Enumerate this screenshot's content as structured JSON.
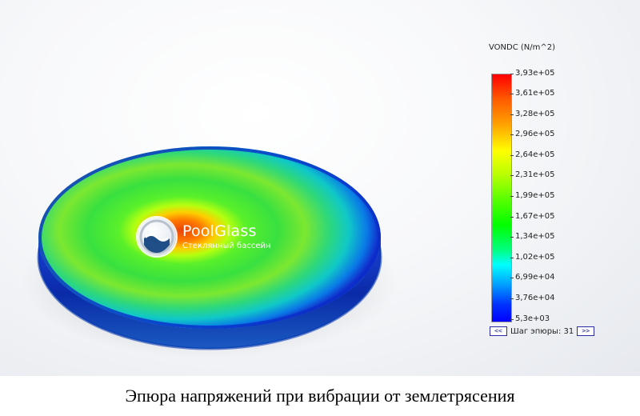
{
  "legend": {
    "title": "VONDC (N/m^2)",
    "ticks": [
      "3,93e+05",
      "3,61e+05",
      "3,28e+05",
      "2,96e+05",
      "2,64e+05",
      "2,31e+05",
      "1,99e+05",
      "1,67e+05",
      "1,34e+05",
      "1,02e+05",
      "6,99e+04",
      "3,76e+04",
      "5,3e+03"
    ],
    "step_label": "Шаг эпюры: 31",
    "prev_button": "<<",
    "next_button": ">>"
  },
  "logo": {
    "name": "PoolGlass",
    "subtitle": "Стеклянный бассейн"
  },
  "caption": "Эпюра напряжений при вибрации от землетрясения",
  "colors": {
    "max": "#ff0000",
    "mid": "#00ff00",
    "min": "#0000ff"
  }
}
